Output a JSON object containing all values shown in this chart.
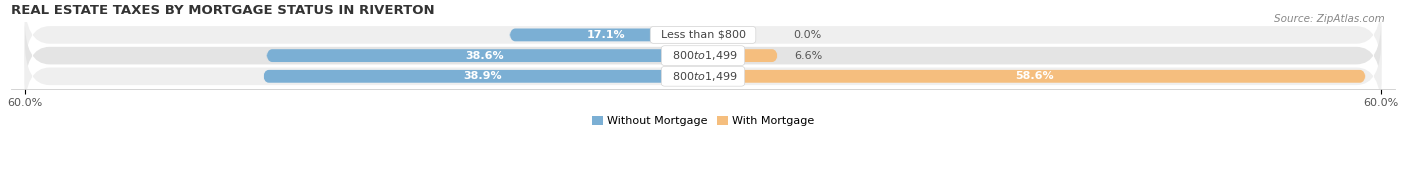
{
  "title": "REAL ESTATE TAXES BY MORTGAGE STATUS IN RIVERTON",
  "source": "Source: ZipAtlas.com",
  "categories": [
    "Less than $800",
    "$800 to $1,499",
    "$800 to $1,499"
  ],
  "without_mortgage": [
    17.1,
    38.6,
    38.9
  ],
  "with_mortgage": [
    0.0,
    6.6,
    58.6
  ],
  "max_val": 60.0,
  "blue_color": "#7BAFD4",
  "orange_color": "#F5BE7E",
  "row_bg_even": "#EFEFEF",
  "row_bg_odd": "#E4E4E4",
  "legend_without": "Without Mortgage",
  "legend_with": "With Mortgage",
  "title_fontsize": 9.5,
  "label_fontsize": 8,
  "tick_fontsize": 8,
  "source_fontsize": 7.5,
  "figsize": [
    14.06,
    1.96
  ],
  "dpi": 100
}
